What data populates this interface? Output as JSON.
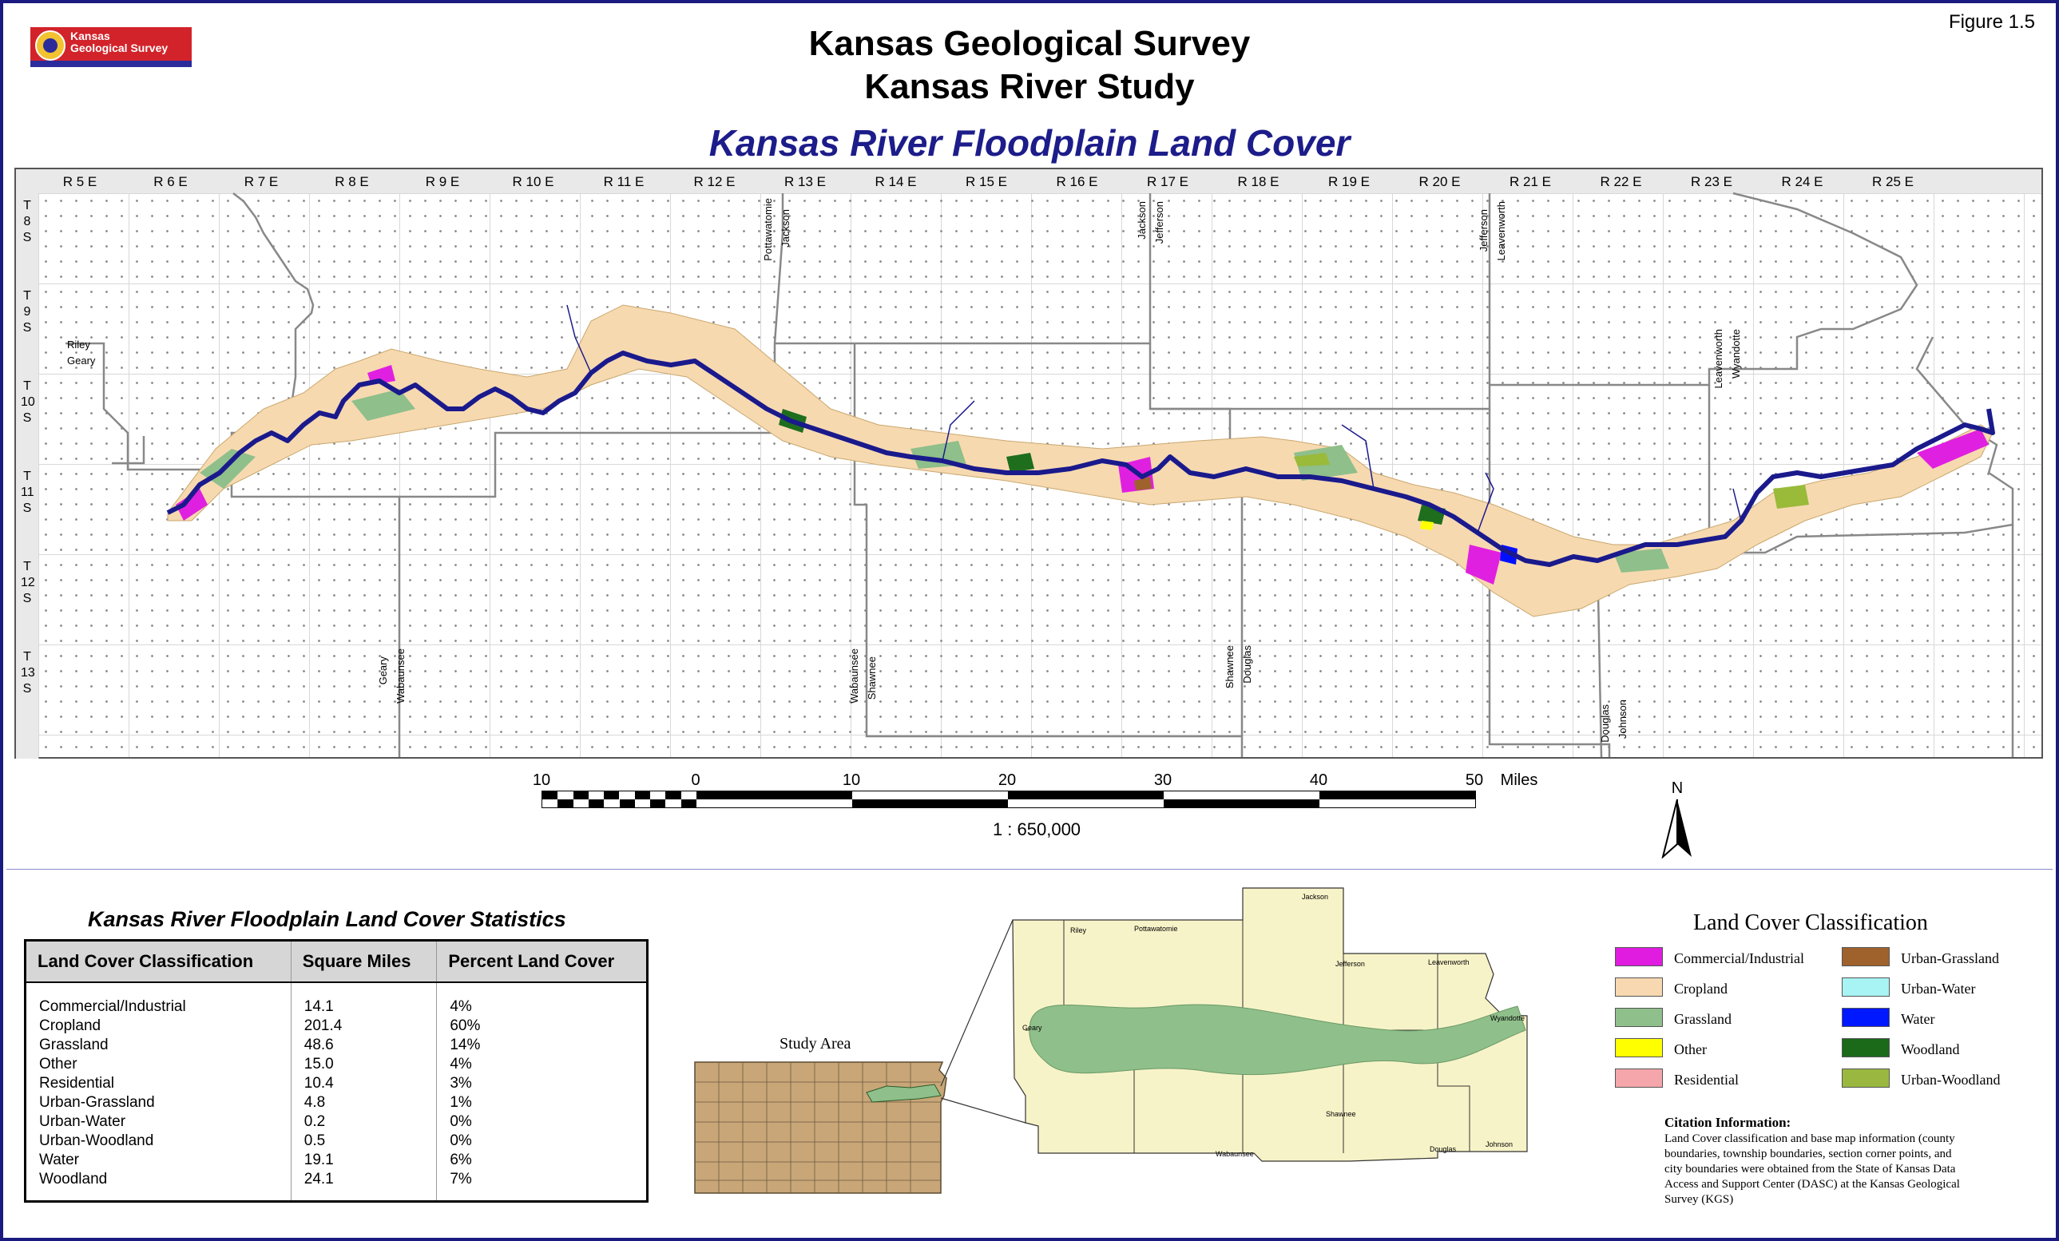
{
  "header": {
    "figure": "Figure  1.5",
    "title_line1": "Kansas Geological Survey",
    "title_line2": "Kansas River Study",
    "map_title": "Kansas River Floodplain Land Cover",
    "logo_line1": "Kansas",
    "logo_line2": "Geological Survey"
  },
  "map": {
    "ranges": [
      "R 5 E",
      "R 6 E",
      "R 7 E",
      "R 8 E",
      "R 9 E",
      "R 10 E",
      "R 11 E",
      "R 12 E",
      "R 13 E",
      "R 14 E",
      "R 15 E",
      "R 16 E",
      "R 17 E",
      "R 18 E",
      "R 19 E",
      "R 20 E",
      "R 21 E",
      "R 22 E",
      "R 23 E",
      "R 24 E",
      "R 25 E"
    ],
    "townships": [
      {
        "t": "T",
        "n": "8",
        "s": "S"
      },
      {
        "t": "T",
        "n": "9",
        "s": "S"
      },
      {
        "t": "T",
        "n": "10",
        "s": "S"
      },
      {
        "t": "T",
        "n": "11",
        "s": "S"
      },
      {
        "t": "T",
        "n": "12",
        "s": "S"
      },
      {
        "t": "T",
        "n": "13",
        "s": "S"
      }
    ],
    "counties": {
      "riley": "Riley",
      "geary": "Geary",
      "pottawatomie": "Pottawatomie",
      "jackson": "Jackson",
      "jackson2": "Jackson",
      "jefferson": "Jefferson",
      "jefferson2": "Jefferson",
      "leavenworth": "Leavenworth",
      "leavenworth2": "Leavenworth",
      "wyandotte": "Wyandotte",
      "geary2": "Geary",
      "wabaunsee": "Wabaunsee",
      "wabaunsee2": "Wabaunsee",
      "shawnee": "Shawnee",
      "shawnee2": "Shawnee",
      "douglas": "Douglas",
      "douglas2": "Douglas",
      "johnson": "Johnson"
    },
    "colors": {
      "river": "#1a1a8c",
      "cropland": "#f7d9b0",
      "grassland": "#8fbf8a",
      "commercial": "#e020e0",
      "woodland": "#1e6e1e",
      "urban_woodland": "#9aba3a",
      "water": "#0010ff",
      "residential": "#f5a0a8"
    }
  },
  "scale_bar": {
    "ticks": [
      "10",
      "0",
      "10",
      "20",
      "30",
      "40",
      "50"
    ],
    "unit": "Miles",
    "ratio": "1 : 650,000",
    "north": "N"
  },
  "statistics": {
    "title": "Kansas River Floodplain Land Cover Statistics",
    "headers": [
      "Land Cover Classification",
      "Square Miles",
      "Percent Land Cover"
    ],
    "rows": [
      [
        "Commercial/Industrial",
        "14.1",
        "4%"
      ],
      [
        "Cropland",
        "201.4",
        "60%"
      ],
      [
        "Grassland",
        "48.6",
        "14%"
      ],
      [
        "Other",
        "15.0",
        "4%"
      ],
      [
        "Residential",
        "10.4",
        "3%"
      ],
      [
        "Urban-Grassland",
        "4.8",
        "1%"
      ],
      [
        "Urban-Water",
        "0.2",
        "0%"
      ],
      [
        "Urban-Woodland",
        "0.5",
        "0%"
      ],
      [
        "Water",
        "19.1",
        "6%"
      ],
      [
        "Woodland",
        "24.1",
        "7%"
      ]
    ]
  },
  "inset": {
    "study_area": "Study Area",
    "counties": {
      "riley": "Riley",
      "pottawatomie": "Pottawatomie",
      "jackson": "Jackson",
      "jefferson": "Jefferson",
      "leavenworth": "Leavenworth",
      "geary": "Geary",
      "wyandotte": "Wyandotte",
      "wabaunsee": "Wabaunsee",
      "shawnee": "Shawnee",
      "douglas": "Douglas",
      "johnson": "Johnson"
    }
  },
  "legend": {
    "title": "Land Cover Classification",
    "items": [
      {
        "label": "Commercial/Industrial",
        "color": "#e01ce0"
      },
      {
        "label": "Cropland",
        "color": "#f8d8b0"
      },
      {
        "label": "Grassland",
        "color": "#8fbf8a"
      },
      {
        "label": "Other",
        "color": "#ffff00"
      },
      {
        "label": "Residential",
        "color": "#f5a6aa"
      },
      {
        "label": "Urban-Grassland",
        "color": "#a0622c"
      },
      {
        "label": "Urban-Water",
        "color": "#a8f4f4"
      },
      {
        "label": "Water",
        "color": "#0018ff"
      },
      {
        "label": "Woodland",
        "color": "#1a6a1a"
      },
      {
        "label": "Urban-Woodland",
        "color": "#9ab840"
      }
    ]
  },
  "citation": {
    "title": "Citation Information:",
    "text": "Land Cover classification and base map information (county boundaries, township boundaries, section corner points, and city boundaries were obtained from the State of Kansas Data Access and Support Center (DASC) at the Kansas Geological Survey (KGS)"
  }
}
